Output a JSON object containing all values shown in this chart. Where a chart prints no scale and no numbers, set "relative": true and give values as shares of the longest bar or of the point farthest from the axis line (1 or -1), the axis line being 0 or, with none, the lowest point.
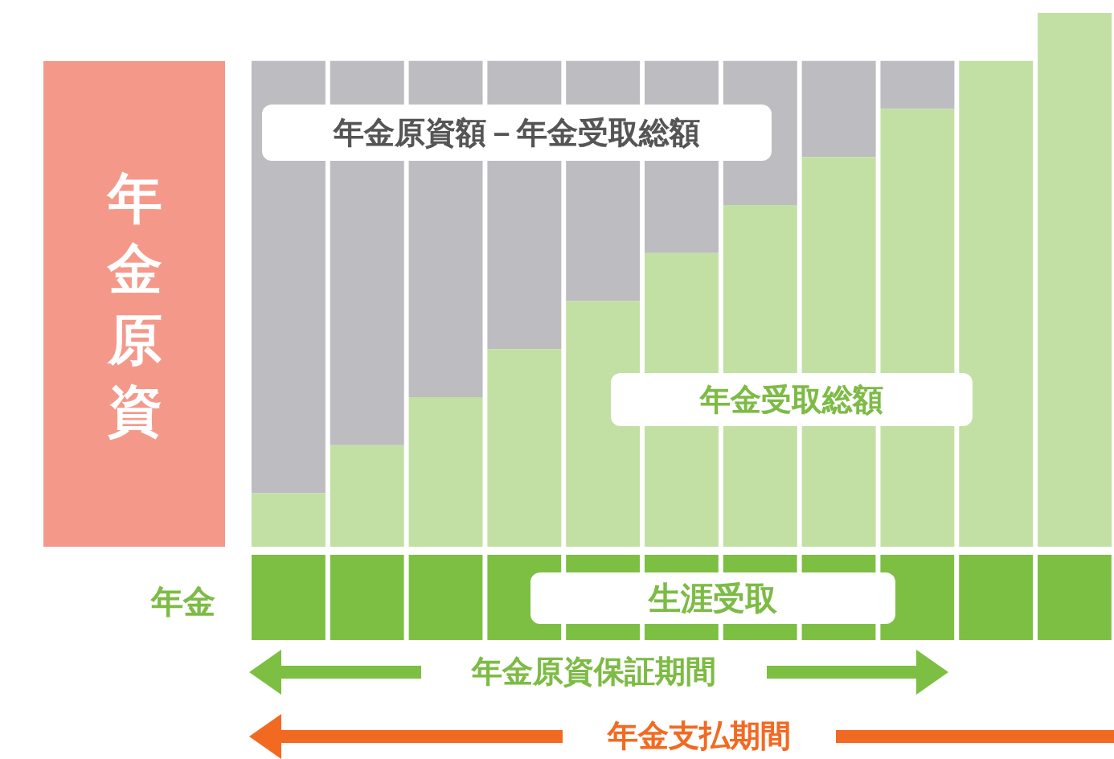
{
  "chart_data": {
    "type": "bar",
    "stacked": true,
    "relative": true,
    "legend": false,
    "categories": [
      null,
      null,
      null,
      null,
      null,
      null,
      null,
      null,
      null,
      null,
      null
    ],
    "series": [
      {
        "name": "年金受取総額",
        "color": "#c2e0a3",
        "values": [
          0.1,
          0.19,
          0.28,
          0.37,
          0.46,
          0.55,
          0.64,
          0.73,
          0.82,
          0.91,
          1
        ]
      },
      {
        "name": "年金原資額－年金受取総額",
        "color": "#bcbcc1",
        "values": [
          0.81,
          0.72,
          0.63,
          0.54,
          0.45,
          0.36,
          0.27,
          0.18,
          0.09,
          null,
          null
        ]
      }
    ],
    "annotations": [
      "年金原資",
      "年金",
      "生涯受取",
      "年金原資保証期間",
      "年金支払期間"
    ]
  }
}
